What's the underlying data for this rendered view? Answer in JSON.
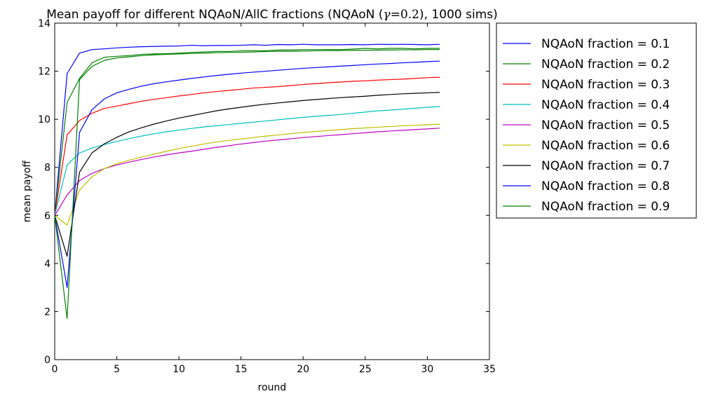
{
  "chart_data": {
    "type": "line",
    "title_parts": {
      "prefix": "Mean payoff for different NQAoN/AllC fractions (NQAoN (",
      "gamma_symbol": "γ",
      "equals": "=",
      "gamma_value": "0.2",
      "suffix": "), 1000 sims)"
    },
    "xlabel": "round",
    "ylabel": "mean payoff",
    "xlim": [
      0,
      35
    ],
    "ylim": [
      0,
      14
    ],
    "xticks": [
      0,
      5,
      10,
      15,
      20,
      25,
      30,
      35
    ],
    "yticks": [
      0,
      2,
      4,
      6,
      8,
      10,
      12,
      14
    ],
    "grid": false,
    "legend_position": "outside-right",
    "x": [
      0,
      1,
      2,
      3,
      4,
      5,
      6,
      7,
      8,
      9,
      10,
      11,
      12,
      13,
      14,
      15,
      16,
      17,
      18,
      19,
      20,
      21,
      22,
      23,
      24,
      25,
      26,
      27,
      28,
      29,
      30,
      31
    ],
    "series": [
      {
        "name": "NQAoN fraction = 0.1",
        "color": "#0000ff",
        "values": [
          6.0,
          11.9,
          12.75,
          12.9,
          12.93,
          12.97,
          13.0,
          13.02,
          13.03,
          13.04,
          13.05,
          13.08,
          13.06,
          13.07,
          13.07,
          13.08,
          13.1,
          13.08,
          13.11,
          13.1,
          13.12,
          13.1,
          13.1,
          13.1,
          13.11,
          13.1,
          13.12,
          13.11,
          13.12,
          13.11,
          13.1,
          13.12
        ]
      },
      {
        "name": "NQAoN fraction = 0.2",
        "color": "#008000",
        "values": [
          6.0,
          10.7,
          11.7,
          12.35,
          12.58,
          12.62,
          12.65,
          12.7,
          12.72,
          12.73,
          12.75,
          12.78,
          12.8,
          12.82,
          12.82,
          12.85,
          12.85,
          12.85,
          12.88,
          12.88,
          12.9,
          12.9,
          12.9,
          12.9,
          12.92,
          12.95,
          12.93,
          12.95,
          12.95,
          12.93,
          12.95,
          12.95
        ]
      },
      {
        "name": "NQAoN fraction = 0.3",
        "color": "#ff0000",
        "values": [
          6.0,
          9.35,
          9.95,
          10.25,
          10.45,
          10.55,
          10.65,
          10.75,
          10.83,
          10.9,
          10.97,
          11.03,
          11.1,
          11.15,
          11.2,
          11.25,
          11.3,
          11.33,
          11.36,
          11.4,
          11.45,
          11.48,
          11.52,
          11.55,
          11.58,
          11.6,
          11.63,
          11.65,
          11.67,
          11.7,
          11.73,
          11.75
        ]
      },
      {
        "name": "NQAoN fraction = 0.4",
        "color": "#00bfbf",
        "values": [
          6.0,
          8.1,
          8.6,
          8.8,
          8.95,
          9.08,
          9.2,
          9.3,
          9.4,
          9.48,
          9.55,
          9.62,
          9.68,
          9.73,
          9.78,
          9.83,
          9.88,
          9.93,
          9.98,
          10.03,
          10.08,
          10.12,
          10.16,
          10.2,
          10.25,
          10.3,
          10.35,
          10.38,
          10.42,
          10.46,
          10.5,
          10.53
        ]
      },
      {
        "name": "NQAoN fraction = 0.5",
        "color": "#bf00bf",
        "values": [
          6.0,
          6.85,
          7.45,
          7.75,
          7.95,
          8.1,
          8.22,
          8.33,
          8.43,
          8.52,
          8.6,
          8.67,
          8.75,
          8.83,
          8.9,
          8.97,
          9.03,
          9.09,
          9.14,
          9.19,
          9.24,
          9.28,
          9.32,
          9.36,
          9.4,
          9.44,
          9.48,
          9.51,
          9.54,
          9.57,
          9.6,
          9.63
        ]
      },
      {
        "name": "NQAoN fraction = 0.6",
        "color": "#bfbf00",
        "values": [
          6.0,
          5.6,
          7.05,
          7.6,
          7.95,
          8.15,
          8.3,
          8.43,
          8.55,
          8.67,
          8.78,
          8.88,
          8.97,
          9.05,
          9.12,
          9.18,
          9.24,
          9.3,
          9.35,
          9.4,
          9.45,
          9.49,
          9.53,
          9.57,
          9.61,
          9.64,
          9.67,
          9.7,
          9.73,
          9.75,
          9.77,
          9.8
        ]
      },
      {
        "name": "NQAoN fraction = 0.7",
        "color": "#000000",
        "values": [
          6.0,
          4.3,
          7.8,
          8.6,
          8.98,
          9.25,
          9.48,
          9.65,
          9.8,
          9.93,
          10.05,
          10.15,
          10.25,
          10.35,
          10.43,
          10.5,
          10.57,
          10.63,
          10.68,
          10.73,
          10.78,
          10.82,
          10.86,
          10.9,
          10.93,
          10.96,
          11.0,
          11.03,
          11.06,
          11.08,
          11.1,
          11.12
        ]
      },
      {
        "name": "NQAoN fraction = 0.8",
        "color": "#0000ff",
        "values": [
          6.0,
          3.0,
          9.45,
          10.4,
          10.85,
          11.1,
          11.25,
          11.38,
          11.48,
          11.56,
          11.63,
          11.7,
          11.76,
          11.82,
          11.87,
          11.92,
          11.96,
          12.0,
          12.04,
          12.08,
          12.12,
          12.15,
          12.18,
          12.21,
          12.24,
          12.27,
          12.3,
          12.32,
          12.35,
          12.37,
          12.4,
          12.42
        ]
      },
      {
        "name": "NQAoN fraction = 0.9",
        "color": "#008000",
        "values": [
          6.0,
          1.7,
          11.65,
          12.2,
          12.45,
          12.55,
          12.6,
          12.65,
          12.68,
          12.7,
          12.72,
          12.74,
          12.75,
          12.77,
          12.78,
          12.79,
          12.8,
          12.82,
          12.83,
          12.83,
          12.84,
          12.85,
          12.86,
          12.86,
          12.87,
          12.87,
          12.88,
          12.88,
          12.89,
          12.89,
          12.9,
          12.9
        ]
      }
    ]
  }
}
